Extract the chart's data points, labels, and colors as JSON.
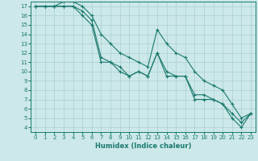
{
  "xlabel": "Humidex (Indice chaleur)",
  "xlim": [
    -0.5,
    23.5
  ],
  "ylim": [
    3.5,
    17.5
  ],
  "xticks": [
    0,
    1,
    2,
    3,
    4,
    5,
    6,
    7,
    8,
    9,
    10,
    11,
    12,
    13,
    14,
    15,
    16,
    17,
    18,
    19,
    20,
    21,
    22,
    23
  ],
  "yticks": [
    4,
    5,
    6,
    7,
    8,
    9,
    10,
    11,
    12,
    13,
    14,
    15,
    16,
    17
  ],
  "bg_color": "#cce8e8",
  "grid_color": "#aacfcf",
  "line_color": "#1a7a6e",
  "line1_x": [
    0,
    1,
    2,
    3,
    4,
    5,
    6,
    7,
    8,
    9,
    10,
    11,
    12,
    13,
    14,
    15,
    16,
    17,
    18,
    19,
    20,
    21,
    22,
    23
  ],
  "line1_y": [
    17,
    17,
    17,
    17,
    17,
    16,
    15,
    11,
    11,
    10,
    9.5,
    10,
    9.5,
    12,
    9.5,
    9.5,
    9.5,
    7,
    7,
    7,
    6.5,
    5,
    4,
    5.5
  ],
  "line2_x": [
    0,
    1,
    2,
    3,
    4,
    5,
    6,
    7,
    8,
    9,
    10,
    11,
    12,
    13,
    14,
    15,
    16,
    17,
    18,
    19,
    20,
    21,
    22,
    23
  ],
  "line2_y": [
    17,
    17,
    17,
    17,
    17,
    16.5,
    15.5,
    11.5,
    11,
    10.5,
    9.5,
    10,
    9.5,
    12,
    10,
    9.5,
    9.5,
    7.5,
    7.5,
    7,
    6.5,
    5.5,
    4.5,
    5.5
  ],
  "line3_x": [
    0,
    1,
    2,
    3,
    4,
    5,
    6,
    7,
    8,
    9,
    10,
    11,
    12,
    13,
    14,
    15,
    16,
    17,
    18,
    19,
    20,
    21,
    22,
    23
  ],
  "line3_y": [
    17,
    17,
    17,
    17.5,
    17.5,
    17,
    16,
    14,
    13,
    12,
    11.5,
    11,
    10.5,
    14.5,
    13,
    12,
    11.5,
    10,
    9,
    8.5,
    8,
    6.5,
    5,
    5.5
  ],
  "marker": "+",
  "markersize": 3,
  "linewidth": 0.8,
  "tick_fontsize": 5,
  "xlabel_fontsize": 6
}
